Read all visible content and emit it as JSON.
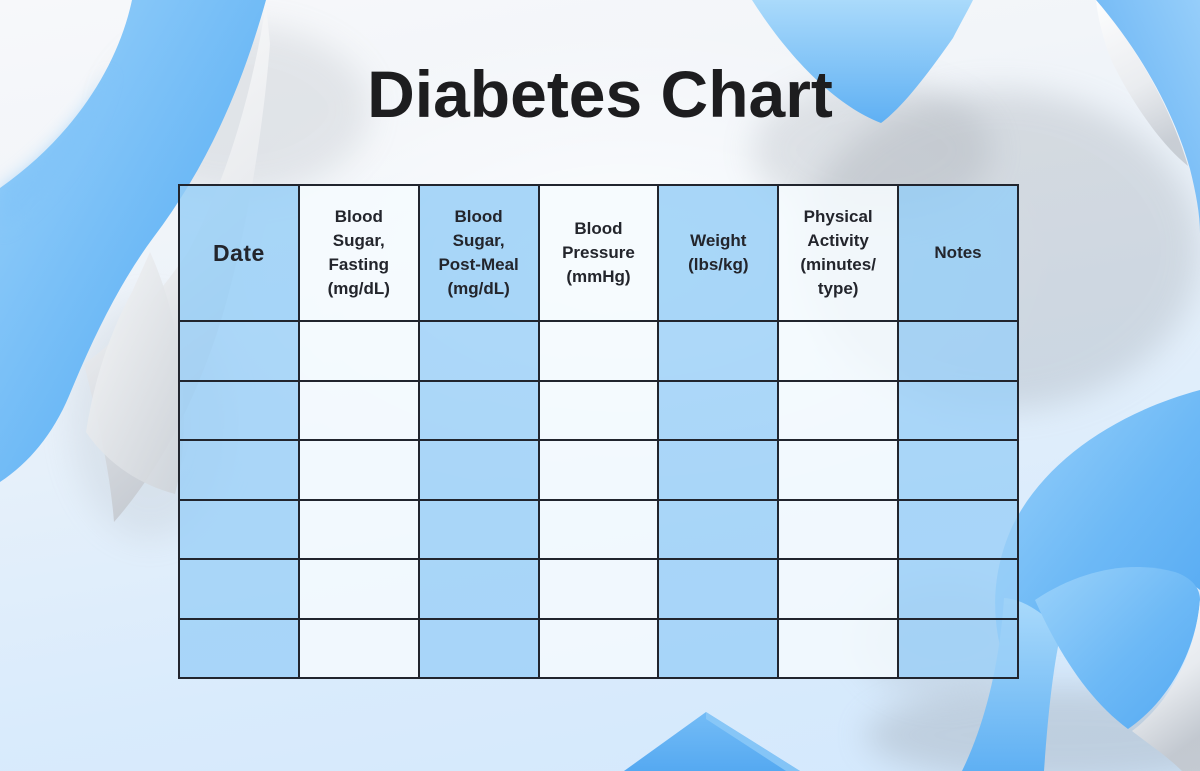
{
  "page": {
    "title": "Diabetes Chart"
  },
  "colors": {
    "ribbon_blue": "#64b5f6",
    "ribbon_blue_light": "#a5d8fb",
    "ribbon_underside_white": "#f3f4f6",
    "ribbon_underside_gray": "#c3c8cf",
    "table_border": "#21252e",
    "cell_blue": "#b9e0fa",
    "cell_light": "#f0f7fd",
    "title_text": "#1d1d1f",
    "header_text": "#23252c",
    "background_top": "#f7f8fa",
    "background_bottom": "#d3e8fd"
  },
  "table": {
    "columns": [
      {
        "label": "Date",
        "shaded": true
      },
      {
        "label": "Blood Sugar, Fasting (mg/dL)",
        "shaded": false
      },
      {
        "label": "Blood Sugar, Post-Meal (mg/dL)",
        "shaded": true
      },
      {
        "label": "Blood Pressure (mmHg)",
        "shaded": false
      },
      {
        "label": "Weight (lbs/kg)",
        "shaded": true
      },
      {
        "label": "Physical Activity (minutes/ type)",
        "shaded": false
      },
      {
        "label": "Notes",
        "shaded": true
      }
    ],
    "body_rows": 6,
    "rows": [
      [
        "",
        "",
        "",
        "",
        "",
        "",
        ""
      ],
      [
        "",
        "",
        "",
        "",
        "",
        "",
        ""
      ],
      [
        "",
        "",
        "",
        "",
        "",
        "",
        ""
      ],
      [
        "",
        "",
        "",
        "",
        "",
        "",
        ""
      ],
      [
        "",
        "",
        "",
        "",
        "",
        "",
        ""
      ],
      [
        "",
        "",
        "",
        "",
        "",
        "",
        ""
      ]
    ]
  }
}
